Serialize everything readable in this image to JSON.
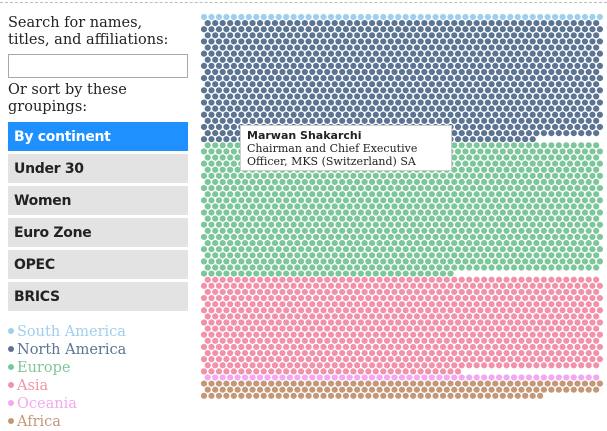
{
  "search": {
    "prompt": "Search for names, titles, and affiliations:",
    "value": "",
    "placeholder": ""
  },
  "sort": {
    "prompt": "Or sort by these groupings:",
    "buttons": [
      {
        "label": "By continent",
        "active": true
      },
      {
        "label": "Under 30"
      },
      {
        "label": "Women"
      },
      {
        "label": "Euro Zone"
      },
      {
        "label": "OPEC"
      },
      {
        "label": "BRICS"
      }
    ]
  },
  "legend": [
    {
      "label": "South America",
      "color": "#9ed0ee"
    },
    {
      "label": "North America",
      "color": "#5b7493"
    },
    {
      "label": "Europe",
      "color": "#7cc79a"
    },
    {
      "label": "Asia",
      "color": "#f292aa"
    },
    {
      "label": "Oceania",
      "color": "#f3a8ef"
    },
    {
      "label": "Africa",
      "color": "#c49777"
    }
  ],
  "highlight": {
    "color": "#ee44dd",
    "continent": "Europe",
    "index": 112
  },
  "tooltip": {
    "name": "Marwan Shakarchi",
    "title": "Chairman and Chief Executive Officer, MKS (Switzerland) SA"
  }
}
